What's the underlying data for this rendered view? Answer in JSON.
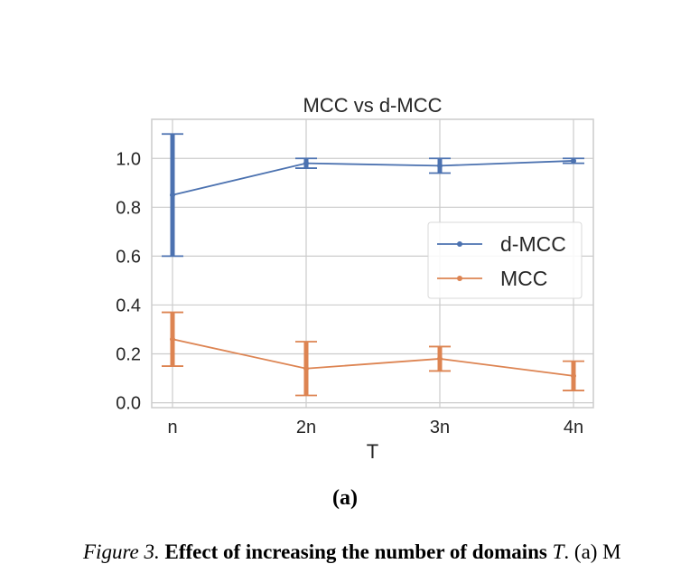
{
  "chart_data": {
    "type": "line",
    "title": "MCC vs d-MCC",
    "xlabel": "T",
    "ylabel": "",
    "categories": [
      "n",
      "2n",
      "3n",
      "4n"
    ],
    "ylim": [
      -0.02,
      1.16
    ],
    "yticks": [
      0.0,
      0.2,
      0.4,
      0.6,
      0.8,
      1.0
    ],
    "ytick_labels": [
      "0.0",
      "0.2",
      "0.4",
      "0.6",
      "0.8",
      "1.0"
    ],
    "grid": true,
    "legend_position": "center-right",
    "series": [
      {
        "name": "d-MCC",
        "color": "#4c72b0",
        "values": [
          0.85,
          0.98,
          0.97,
          0.99
        ],
        "error_low": [
          0.6,
          0.96,
          0.94,
          0.98
        ],
        "error_high": [
          1.1,
          1.0,
          1.0,
          1.0
        ]
      },
      {
        "name": "MCC",
        "color": "#dd8452",
        "values": [
          0.26,
          0.14,
          0.18,
          0.11
        ],
        "error_low": [
          0.15,
          0.03,
          0.13,
          0.05
        ],
        "error_high": [
          0.37,
          0.25,
          0.23,
          0.17
        ]
      }
    ]
  },
  "subfigure_label": "(a)",
  "caption": {
    "lead": "Figure 3.",
    "bold": "Effect of increasing the number of domains",
    "math": "T",
    "rest": ". (a) M"
  }
}
